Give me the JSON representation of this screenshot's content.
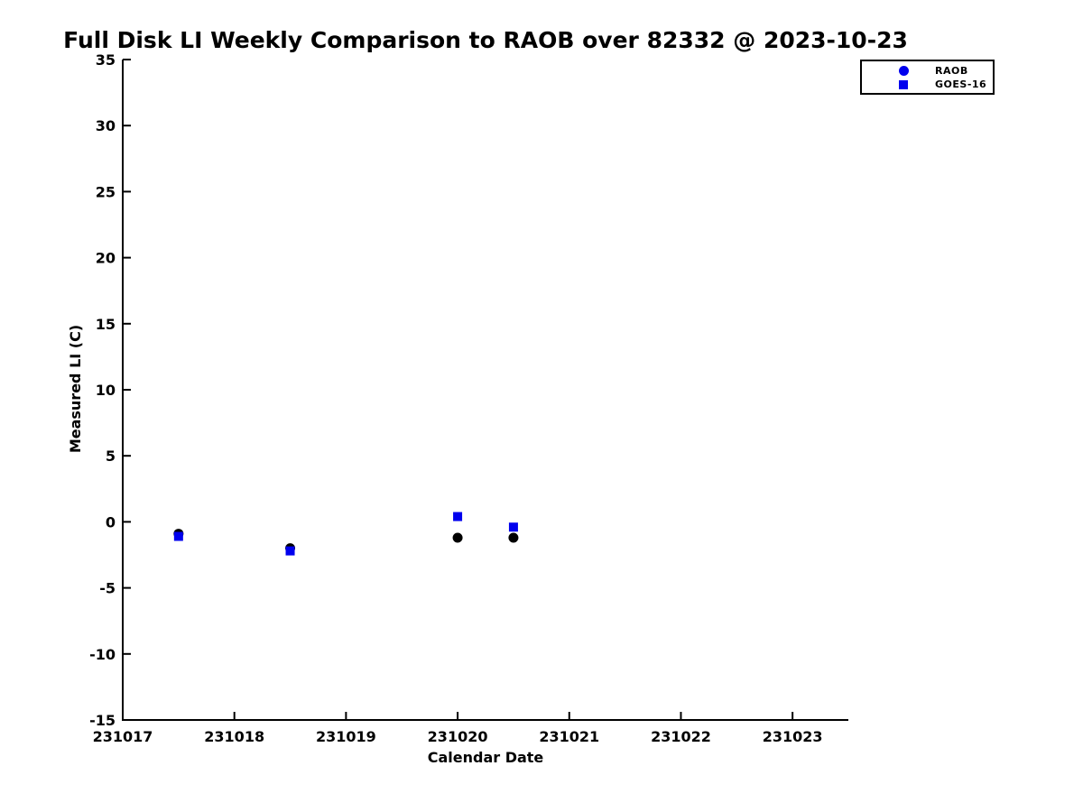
{
  "chart_data": {
    "type": "scatter",
    "title": "Full Disk LI Weekly Comparison to RAOB over 82332 @ 2023-10-23",
    "xlabel": "Calendar Date",
    "ylabel": "Measured LI (C)",
    "xlim": [
      231017,
      231023.5
    ],
    "ylim": [
      -15,
      35
    ],
    "x_ticks": [
      231017,
      231018,
      231019,
      231020,
      231021,
      231022,
      231023
    ],
    "y_ticks": [
      35,
      30,
      25,
      20,
      15,
      10,
      5,
      0,
      -5,
      -10,
      -15
    ],
    "grid": false,
    "background_color": "#ffffff",
    "axis_color": "#000000",
    "accent_blue": "#0000ee",
    "legend": {
      "position": "upper-right",
      "entries": [
        {
          "label": "RAOB",
          "marker": "circle",
          "color": "#0000ee"
        },
        {
          "label": "GOES-16",
          "marker": "square",
          "color": "#0000ee"
        }
      ]
    },
    "series": [
      {
        "name": "RAOB",
        "marker": "circle",
        "marker_color": "#000000",
        "x": [
          231017.5,
          231018.5,
          231020.0,
          231020.5
        ],
        "y": [
          -0.9,
          -2.0,
          -1.2,
          -1.2
        ]
      },
      {
        "name": "GOES-16",
        "marker": "square",
        "marker_color": "#0000ee",
        "x": [
          231017.5,
          231018.5,
          231020.0,
          231020.5
        ],
        "y": [
          -1.1,
          -2.2,
          0.4,
          -0.4
        ]
      }
    ]
  }
}
